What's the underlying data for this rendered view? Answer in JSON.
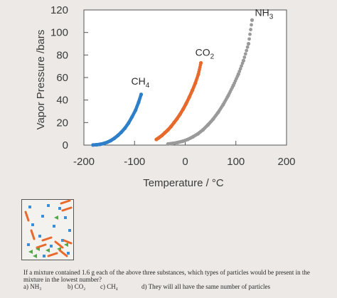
{
  "chart_data": {
    "type": "scatter",
    "title": "",
    "xlabel": "Temperature / °C",
    "ylabel": "Vapor Pressure /bars",
    "xlim": [
      -200,
      200
    ],
    "ylim": [
      0,
      120
    ],
    "xticks": [
      -200,
      -100,
      0,
      100,
      200
    ],
    "yticks": [
      0,
      20,
      40,
      60,
      80,
      100,
      120
    ],
    "xtick_labels": [
      "-200",
      "-100",
      "0",
      "100",
      "200"
    ],
    "ytick_labels": [
      "0",
      "20",
      "40",
      "60",
      "80",
      "100",
      "120"
    ],
    "grid": false,
    "series": [
      {
        "name": "CH4",
        "label_main": "CH",
        "label_sub": "4",
        "color": "#2e7fc9",
        "x": [
          -182,
          -175,
          -168,
          -161,
          -154,
          -147,
          -140,
          -133,
          -126,
          -119,
          -112,
          -105,
          -98,
          -92,
          -87
        ],
        "y": [
          0.1,
          0.3,
          0.7,
          1.4,
          2.5,
          4,
          6,
          8.5,
          11.5,
          15,
          19.5,
          25,
          31,
          38,
          45
        ]
      },
      {
        "name": "CO2",
        "label_main": "CO",
        "label_sub": "2",
        "color": "#e8692c",
        "x": [
          -57,
          -52,
          -46,
          -40,
          -34,
          -28,
          -22,
          -16,
          -10,
          -4,
          2,
          8,
          14,
          20,
          26,
          31
        ],
        "y": [
          5,
          6.5,
          8.5,
          11,
          13.5,
          16.5,
          20,
          23.5,
          27.5,
          32,
          37,
          42.5,
          48.5,
          55,
          63,
          73
        ]
      },
      {
        "name": "NH3",
        "label_main": "NH",
        "label_sub": "3",
        "color": "#9a9a9a",
        "x": [
          -34,
          -25,
          -15,
          -5,
          5,
          15,
          25,
          35,
          45,
          55,
          65,
          75,
          85,
          95,
          105,
          115,
          125,
          132
        ],
        "y": [
          1,
          1.5,
          2.3,
          3.4,
          5,
          7.3,
          10,
          13.5,
          18,
          23,
          29,
          36,
          44,
          53,
          63,
          75,
          90,
          111
        ]
      }
    ]
  },
  "particle_box": {
    "blue_color": "#3a8fd6",
    "green_color": "#4fa84a",
    "orange_color": "#e8692c",
    "blue_count": 14,
    "green_count": 7,
    "orange_count": 10
  },
  "question": {
    "text": "If a mixture contained 1.6 g each of the above three substances, which types of particles would be present in the mixture in the lowest number?",
    "options": {
      "a": "a) NH₃",
      "b": "b) CO₂",
      "c": "c) CH₄",
      "d": "d) They will all have the same number of particles"
    }
  }
}
